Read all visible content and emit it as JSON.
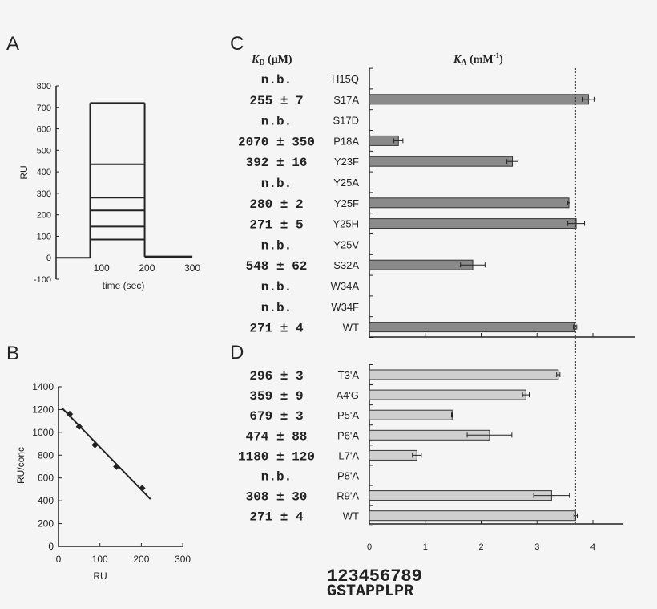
{
  "chart_data": [
    {
      "panel": "A",
      "type": "line",
      "xlabel": "time (sec)",
      "ylabel": "RU",
      "xlim": [
        0,
        300
      ],
      "ylim": [
        -100,
        800
      ],
      "xticks": [
        "100",
        "200",
        "300"
      ],
      "yticks": [
        "-100",
        "0",
        "100",
        "200",
        "300",
        "400",
        "500",
        "600",
        "700",
        "800"
      ],
      "injection_start": 75,
      "injection_end": 195,
      "series": [
        {
          "plateau": 85
        },
        {
          "plateau": 145
        },
        {
          "plateau": 220
        },
        {
          "plateau": 280
        },
        {
          "plateau": 435
        },
        {
          "plateau": 720
        }
      ]
    },
    {
      "panel": "B",
      "type": "scatter",
      "xlabel": "RU",
      "ylabel": "RU/conc",
      "xlim": [
        0,
        300
      ],
      "ylim": [
        0,
        1400
      ],
      "xticks": [
        "0",
        "100",
        "200",
        "300"
      ],
      "yticks": [
        "0",
        "200",
        "400",
        "600",
        "800",
        "1000",
        "1200",
        "1400"
      ],
      "points": [
        [
          27,
          1160
        ],
        [
          50,
          1050
        ],
        [
          88,
          890
        ],
        [
          140,
          700
        ],
        [
          202,
          510
        ]
      ],
      "fit_line": [
        [
          8,
          1215
        ],
        [
          222,
          415
        ]
      ]
    },
    {
      "panel": "C",
      "type": "bar",
      "orientation": "horizontal",
      "kd_header": "K",
      "kd_sub": "D",
      "kd_unit": " (μM)",
      "ka_header": "K",
      "ka_sub": "A",
      "ka_unit": " (mM",
      "ka_sup": "-1",
      "ka_close": ")",
      "xlim": [
        0,
        4.75
      ],
      "reference_line": 3.69,
      "bar_color": "#8a8a8a",
      "rows": [
        {
          "label": "H15Q",
          "kd": "n.b.",
          "value": null,
          "err": null
        },
        {
          "label": "S17A",
          "kd": "255 ± 7",
          "value": 3.92,
          "err": 0.1
        },
        {
          "label": "S17D",
          "kd": "n.b.",
          "value": null,
          "err": null
        },
        {
          "label": "P18A",
          "kd": "2070 ± 350",
          "value": 0.52,
          "err": 0.08
        },
        {
          "label": "Y23F",
          "kd": "392 ± 16",
          "value": 2.56,
          "err": 0.1
        },
        {
          "label": "Y25A",
          "kd": "n.b.",
          "value": null,
          "err": null
        },
        {
          "label": "Y25F",
          "kd": "280 ± 2",
          "value": 3.57,
          "err": 0.02
        },
        {
          "label": "Y25H",
          "kd": "271 ± 5",
          "value": 3.7,
          "err": 0.15
        },
        {
          "label": "Y25V",
          "kd": "n.b.",
          "value": null,
          "err": null
        },
        {
          "label": "S32A",
          "kd": "548 ± 62",
          "value": 1.85,
          "err": 0.22
        },
        {
          "label": "W34A",
          "kd": "n.b.",
          "value": null,
          "err": null
        },
        {
          "label": "W34F",
          "kd": "n.b.",
          "value": null,
          "err": null
        },
        {
          "label": "WT",
          "kd": "271 ± 4",
          "value": 3.68,
          "err": 0.03
        }
      ]
    },
    {
      "panel": "D",
      "type": "bar",
      "orientation": "horizontal",
      "xlim": [
        0,
        4.5
      ],
      "xticks": [
        "0",
        "1",
        "2",
        "3",
        "4"
      ],
      "reference_line": 3.69,
      "bar_color": "#cfcfcf",
      "rows": [
        {
          "label": "T3'A",
          "kd": "296 ± 3",
          "value": 3.38,
          "err": 0.03
        },
        {
          "label": "A4'G",
          "kd": "359 ± 9",
          "value": 2.8,
          "err": 0.06
        },
        {
          "label": "P5'A",
          "kd": "679 ± 3",
          "value": 1.48,
          "err": 0.01
        },
        {
          "label": "P6'A",
          "kd": "474 ± 88",
          "value": 2.15,
          "err": 0.4
        },
        {
          "label": "L7'A",
          "kd": "1180 ± 120",
          "value": 0.85,
          "err": 0.08
        },
        {
          "label": "P8'A",
          "kd": "n.b.",
          "value": null,
          "err": null
        },
        {
          "label": "R9'A",
          "kd": "308 ± 30",
          "value": 3.26,
          "err": 0.32
        },
        {
          "label": "WT",
          "kd": "271 ± 4",
          "value": 3.69,
          "err": 0.03
        }
      ],
      "sequence_numbers": "123456789",
      "sequence": "GSTAPPLPR"
    }
  ]
}
